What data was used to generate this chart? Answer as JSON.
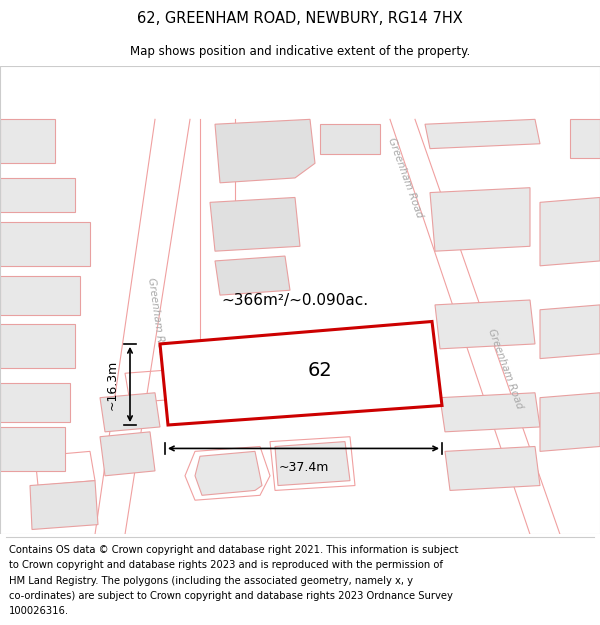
{
  "title": "62, GREENHAM ROAD, NEWBURY, RG14 7HX",
  "subtitle": "Map shows position and indicative extent of the property.",
  "footer_lines": [
    "Contains OS data © Crown copyright and database right 2021. This information is subject",
    "to Crown copyright and database rights 2023 and is reproduced with the permission of",
    "HM Land Registry. The polygons (including the associated geometry, namely x, y",
    "co-ordinates) are subject to Crown copyright and database rights 2023 Ordnance Survey",
    "100026316."
  ],
  "area_text": "~366m²/~0.090ac.",
  "width_text": "~37.4m",
  "height_text": "~16.3m",
  "property_label": "62",
  "map_bg": "#ffffff",
  "building_fill": "#e8e8e8",
  "road_outline": "#f0a0a0",
  "prop_edge": "#cc0000",
  "prop_fill": "#ffffff",
  "dim_color": "#000000",
  "label_road_color": "#aaaaaa",
  "title_fontsize": 10.5,
  "subtitle_fontsize": 8.5,
  "footer_fontsize": 7.2,
  "prop_label_fontsize": 14,
  "area_fontsize": 11,
  "dim_fontsize": 9
}
